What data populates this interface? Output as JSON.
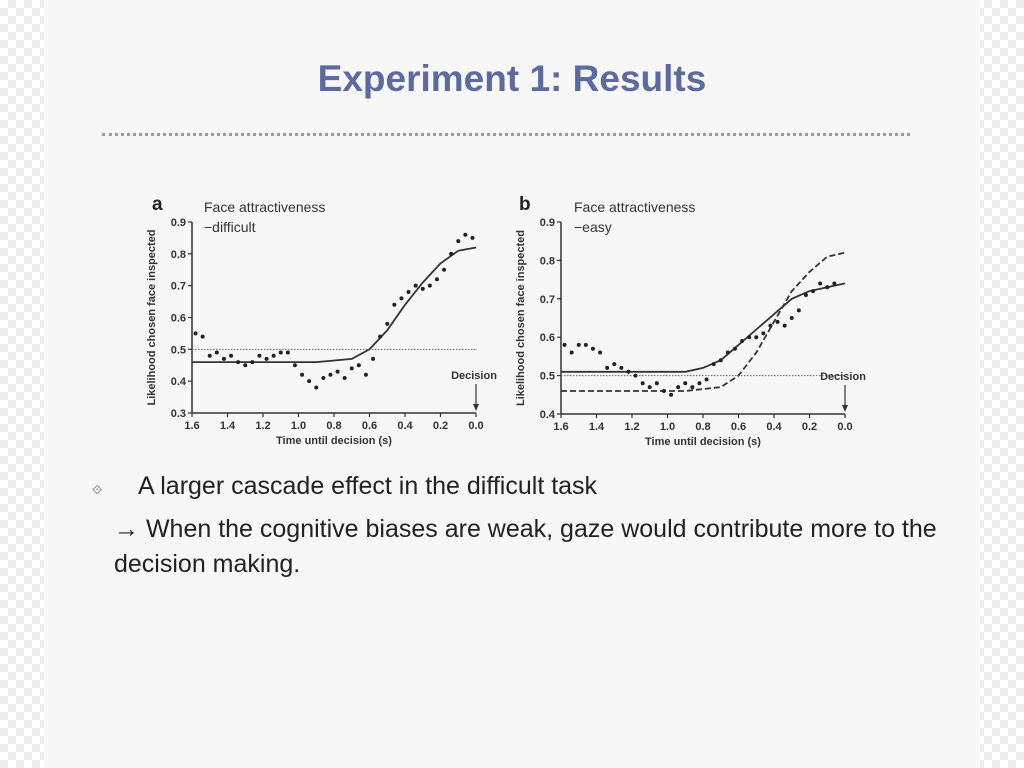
{
  "slide": {
    "title": "Experiment 1: Results",
    "bullets": [
      {
        "marker_icon": "diamond-bullet-icon",
        "text": "A larger cascade effect in the difficult task"
      },
      {
        "arrow": "→",
        "text": " When the cognitive biases are weak, gaze would contribute more to the decision making."
      }
    ]
  },
  "chart_data": [
    {
      "type": "scatter",
      "panel_letter": "a",
      "annotation": "Face attractiveness\n−difficult",
      "annotation_lines": [
        "Face attractiveness",
        "−difficult"
      ],
      "xlabel": "Time until decision (s)",
      "ylabel": "Likelihood chosen face inspected",
      "x_ticks": [
        "1.6",
        "1.4",
        "1.2",
        "1.0",
        "0.8",
        "0.6",
        "0.4",
        "0.2",
        "0.0"
      ],
      "y_ticks": [
        "0.3",
        "0.4",
        "0.5",
        "0.6",
        "0.7",
        "0.8",
        "0.9"
      ],
      "xlim": [
        1.6,
        0.0
      ],
      "ylim": [
        0.3,
        0.9
      ],
      "x_reversed": true,
      "decision_label": "Decision",
      "reference_line": 0.5,
      "points": [
        [
          1.58,
          0.55
        ],
        [
          1.54,
          0.54
        ],
        [
          1.5,
          0.48
        ],
        [
          1.46,
          0.49
        ],
        [
          1.42,
          0.47
        ],
        [
          1.38,
          0.48
        ],
        [
          1.34,
          0.46
        ],
        [
          1.3,
          0.45
        ],
        [
          1.26,
          0.46
        ],
        [
          1.22,
          0.48
        ],
        [
          1.18,
          0.47
        ],
        [
          1.14,
          0.48
        ],
        [
          1.1,
          0.49
        ],
        [
          1.06,
          0.49
        ],
        [
          1.02,
          0.45
        ],
        [
          0.98,
          0.42
        ],
        [
          0.94,
          0.4
        ],
        [
          0.9,
          0.38
        ],
        [
          0.86,
          0.41
        ],
        [
          0.82,
          0.42
        ],
        [
          0.78,
          0.43
        ],
        [
          0.74,
          0.41
        ],
        [
          0.7,
          0.44
        ],
        [
          0.66,
          0.45
        ],
        [
          0.62,
          0.42
        ],
        [
          0.58,
          0.47
        ],
        [
          0.54,
          0.54
        ],
        [
          0.5,
          0.58
        ],
        [
          0.46,
          0.64
        ],
        [
          0.42,
          0.66
        ],
        [
          0.38,
          0.68
        ],
        [
          0.34,
          0.7
        ],
        [
          0.3,
          0.69
        ],
        [
          0.26,
          0.7
        ],
        [
          0.22,
          0.72
        ],
        [
          0.18,
          0.75
        ],
        [
          0.14,
          0.8
        ],
        [
          0.1,
          0.84
        ],
        [
          0.06,
          0.86
        ],
        [
          0.02,
          0.85
        ]
      ],
      "curves": [
        {
          "style": "solid",
          "points": [
            [
              1.6,
              0.46
            ],
            [
              1.2,
              0.46
            ],
            [
              0.9,
              0.46
            ],
            [
              0.7,
              0.47
            ],
            [
              0.6,
              0.5
            ],
            [
              0.5,
              0.56
            ],
            [
              0.4,
              0.64
            ],
            [
              0.3,
              0.71
            ],
            [
              0.2,
              0.77
            ],
            [
              0.1,
              0.81
            ],
            [
              0.0,
              0.82
            ]
          ]
        }
      ]
    },
    {
      "type": "scatter",
      "panel_letter": "b",
      "annotation": "Face attractiveness\n−easy",
      "annotation_lines": [
        "Face attractiveness",
        "−easy"
      ],
      "xlabel": "Time until decision (s)",
      "ylabel": "Likelihood chosen face inspected",
      "x_ticks": [
        "1.6",
        "1.4",
        "1.2",
        "1.0",
        "0.8",
        "0.6",
        "0.4",
        "0.2",
        "0.0"
      ],
      "y_ticks": [
        "0.4",
        "0.5",
        "0.6",
        "0.7",
        "0.8",
        "0.9"
      ],
      "xlim": [
        1.6,
        0.0
      ],
      "ylim": [
        0.4,
        0.9
      ],
      "x_reversed": true,
      "decision_label": "Decision",
      "reference_line": 0.5,
      "points": [
        [
          1.58,
          0.58
        ],
        [
          1.54,
          0.56
        ],
        [
          1.5,
          0.58
        ],
        [
          1.46,
          0.58
        ],
        [
          1.42,
          0.57
        ],
        [
          1.38,
          0.56
        ],
        [
          1.34,
          0.52
        ],
        [
          1.3,
          0.53
        ],
        [
          1.26,
          0.52
        ],
        [
          1.22,
          0.51
        ],
        [
          1.18,
          0.5
        ],
        [
          1.14,
          0.48
        ],
        [
          1.1,
          0.47
        ],
        [
          1.06,
          0.48
        ],
        [
          1.02,
          0.46
        ],
        [
          0.98,
          0.45
        ],
        [
          0.94,
          0.47
        ],
        [
          0.9,
          0.48
        ],
        [
          0.86,
          0.47
        ],
        [
          0.82,
          0.48
        ],
        [
          0.78,
          0.49
        ],
        [
          0.74,
          0.53
        ],
        [
          0.7,
          0.54
        ],
        [
          0.66,
          0.56
        ],
        [
          0.62,
          0.57
        ],
        [
          0.58,
          0.59
        ],
        [
          0.54,
          0.6
        ],
        [
          0.5,
          0.6
        ],
        [
          0.46,
          0.61
        ],
        [
          0.42,
          0.63
        ],
        [
          0.38,
          0.64
        ],
        [
          0.34,
          0.63
        ],
        [
          0.3,
          0.65
        ],
        [
          0.26,
          0.67
        ],
        [
          0.22,
          0.71
        ],
        [
          0.18,
          0.72
        ],
        [
          0.14,
          0.74
        ],
        [
          0.1,
          0.73
        ],
        [
          0.06,
          0.74
        ]
      ],
      "curves": [
        {
          "style": "solid",
          "points": [
            [
              1.6,
              0.51
            ],
            [
              1.2,
              0.51
            ],
            [
              0.9,
              0.51
            ],
            [
              0.8,
              0.52
            ],
            [
              0.7,
              0.54
            ],
            [
              0.6,
              0.58
            ],
            [
              0.5,
              0.62
            ],
            [
              0.4,
              0.66
            ],
            [
              0.3,
              0.7
            ],
            [
              0.2,
              0.72
            ],
            [
              0.1,
              0.73
            ],
            [
              0.0,
              0.74
            ]
          ]
        },
        {
          "style": "dashed",
          "points": [
            [
              1.6,
              0.46
            ],
            [
              1.2,
              0.46
            ],
            [
              0.9,
              0.46
            ],
            [
              0.7,
              0.47
            ],
            [
              0.6,
              0.5
            ],
            [
              0.5,
              0.56
            ],
            [
              0.4,
              0.64
            ],
            [
              0.3,
              0.72
            ],
            [
              0.2,
              0.77
            ],
            [
              0.1,
              0.81
            ],
            [
              0.0,
              0.82
            ]
          ]
        }
      ]
    }
  ]
}
